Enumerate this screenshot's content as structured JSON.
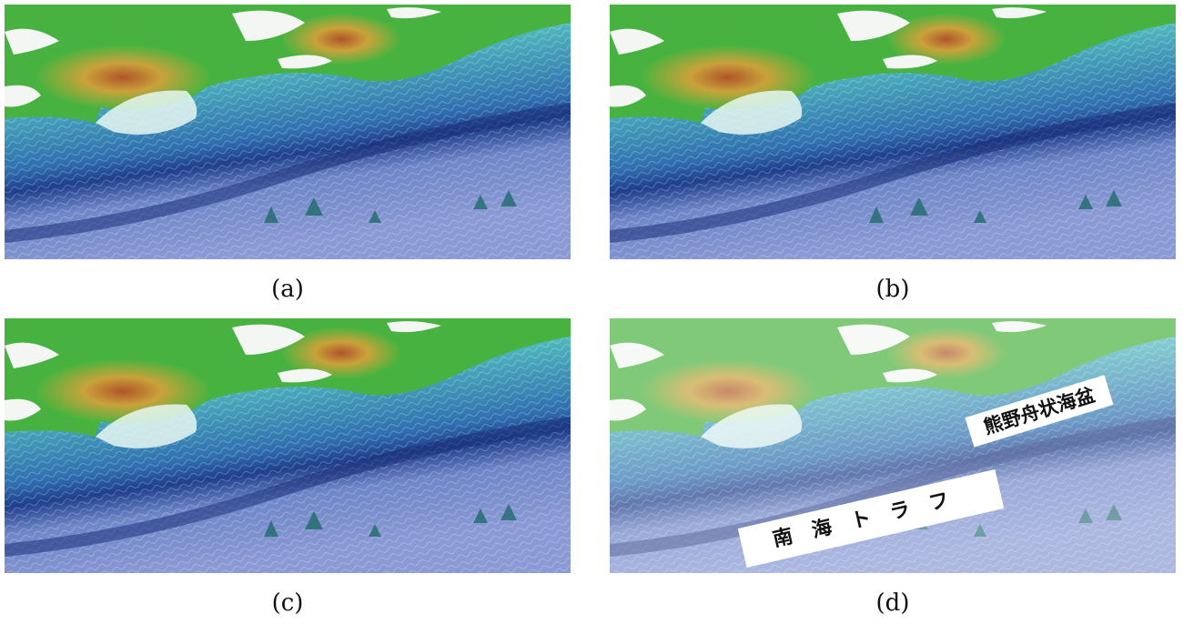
{
  "panels": [
    {
      "caption": "(a)"
    },
    {
      "caption": "(b)"
    },
    {
      "caption": "(c)"
    },
    {
      "caption": "(d)",
      "labels": [
        "熊野舟状海盆",
        "南海トラフ"
      ]
    }
  ]
}
